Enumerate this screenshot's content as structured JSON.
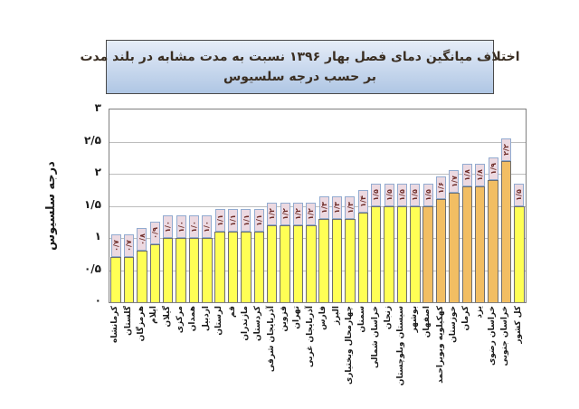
{
  "title": {
    "line1": "اختلاف میانگین دمای فصل بهار ۱۳۹۶ نسبت به مدت مشابه در بلند مدت",
    "line2": "بر حسب درجه سلسیوس"
  },
  "y_axis": {
    "title": "درجه سلسیوس",
    "tick_labels": [
      "۳",
      "۲/۵",
      "۲",
      "۱/۵",
      "۱",
      "۰/۵",
      "۰"
    ],
    "tick_values": [
      3,
      2.5,
      2,
      1.5,
      1,
      0.5,
      0
    ]
  },
  "chart_data": {
    "type": "bar",
    "title": "اختلاف میانگین دمای فصل بهار ۱۳۹۶ نسبت به مدت مشابه در بلند مدت بر حسب درجه سلسیوس",
    "ylabel": "درجه سلسیوس",
    "ylim": [
      0,
      3
    ],
    "grid_step": 0.5,
    "grid_on": true,
    "categories": [
      "کرمانشاه",
      "گلستان",
      "هرمزگان",
      "ایلام",
      "گیلان",
      "مرکزی",
      "همدان",
      "اردبیل",
      "لرستان",
      "قم",
      "مازندران",
      "کردستان",
      "آذربایجان شرقی",
      "قزوین",
      "تهران",
      "آذربایجان غربی",
      "فارس",
      "البرز",
      "چهارمحال وبختیاری",
      "سمنان",
      "خراسان شمالی",
      "زنجان",
      "سیستان وبلوچستان",
      "بوشهر",
      "اصفهان",
      "کهکیلویه وبویراحمد",
      "خوزستان",
      "کرمان",
      "یزد",
      "خراسان رضوی",
      "خراسان جنوبی",
      "کل کشور"
    ],
    "values": [
      0.7,
      0.7,
      0.8,
      0.9,
      1.0,
      1.0,
      1.0,
      1.0,
      1.1,
      1.1,
      1.1,
      1.1,
      1.2,
      1.2,
      1.2,
      1.2,
      1.3,
      1.3,
      1.3,
      1.4,
      1.5,
      1.5,
      1.5,
      1.5,
      1.5,
      1.6,
      1.7,
      1.8,
      1.8,
      1.9,
      2.2,
      1.5
    ],
    "value_labels": [
      "۰/۷",
      "۰/۷",
      "۰/۸",
      "۰/۹",
      "۱/۰",
      "۱/۰",
      "۱/۰",
      "۱/۰",
      "۱/۱",
      "۱/۱",
      "۱/۱",
      "۱/۱",
      "۱/۲",
      "۱/۲",
      "۱/۲",
      "۱/۲",
      "۱/۳",
      "۱/۳",
      "۱/۳",
      "۱/۴",
      "۱/۵",
      "۱/۵",
      "۱/۵",
      "۱/۵",
      "۱/۵",
      "۱/۶",
      "۱/۷",
      "۱/۸",
      "۱/۸",
      "۱/۹",
      "۲/۲",
      "۱/۵"
    ],
    "highlight_indices": [
      24,
      25,
      26,
      27,
      28,
      29,
      30
    ],
    "colors": {
      "bar": "#FFFF55",
      "bar_highlight": "#F2BE63",
      "bar_border": "#6f6f6f",
      "value_label_bg": "#ECD9E1",
      "value_label_border": "#92ABD0",
      "value_label_text": "#6E2C28",
      "gridline": "#BDBDBD",
      "title_bg_top": "#E6EDF8",
      "title_bg_bottom": "#AFC6E4"
    }
  }
}
